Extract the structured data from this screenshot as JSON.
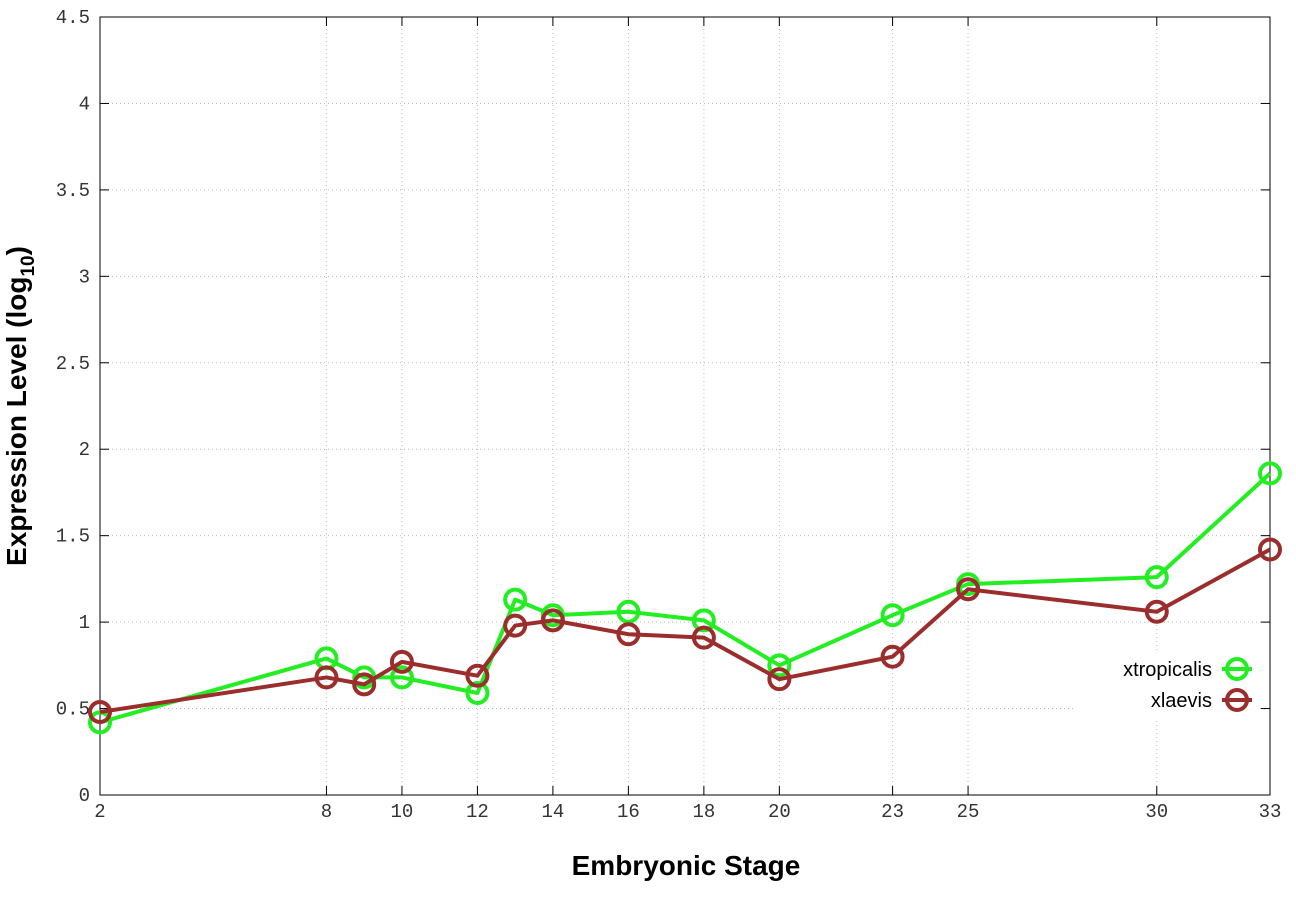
{
  "chart_data": {
    "type": "line",
    "xlabel": "Embryonic Stage",
    "ylabel_parts": [
      "Expression Level (log",
      "10",
      ")"
    ],
    "x": [
      2,
      8,
      9,
      10,
      12,
      13,
      14,
      16,
      18,
      20,
      23,
      25,
      30,
      33
    ],
    "series": [
      {
        "name": "xtropicalis",
        "color": "#22ee22",
        "values": [
          0.42,
          0.79,
          0.68,
          0.68,
          0.59,
          1.13,
          1.04,
          1.06,
          1.01,
          0.75,
          1.04,
          1.22,
          1.26,
          1.86
        ]
      },
      {
        "name": "xlaevis",
        "color": "#9b2d2d",
        "values": [
          0.48,
          0.68,
          0.64,
          0.77,
          0.69,
          0.98,
          1.01,
          0.93,
          0.91,
          0.67,
          0.8,
          1.19,
          1.06,
          1.42
        ]
      }
    ],
    "xlim": [
      2,
      33
    ],
    "xticks": [
      2,
      8,
      10,
      12,
      14,
      16,
      18,
      20,
      23,
      25,
      30,
      33
    ],
    "ylim": [
      0,
      4.5
    ],
    "yticks": [
      0,
      0.5,
      1,
      1.5,
      2,
      2.5,
      3,
      3.5,
      4,
      4.5
    ],
    "grid": true,
    "legend": "lower right"
  }
}
